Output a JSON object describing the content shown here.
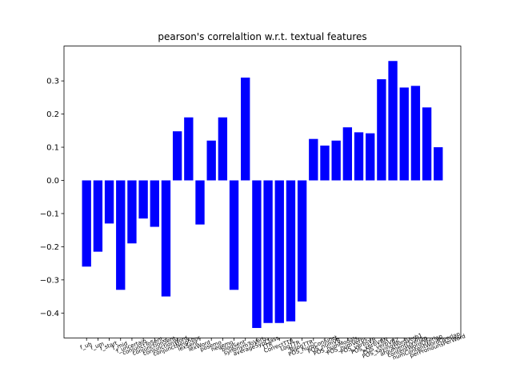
{
  "chart_data": {
    "type": "bar",
    "title": "pearson's correlaltion w.r.t. textual features",
    "categories": [
      "f_uh",
      "f_um",
      "f_start",
      "f_mid",
      "f_uncertain",
      "conjunctToSent",
      "conjunctionSent",
      "conjunctionWord",
      "conjunctNeighbor",
      "lexSent",
      "lexWord",
      "posemo",
      "negemo",
      "blogSent",
      "synonymToVerb",
      "averageSynClass",
      "TTR",
      "CorrectTTR",
      "LogTTR",
      "BilogTTR",
      "POS_numConjunct",
      "POS_numVB",
      "POS_numModals",
      "POS_numVerbs",
      "POS_verbsVB",
      "POS_verbVBN",
      "POS_verbVBZ",
      "POS_sayingWordVerb1",
      "argumentOverlap",
      "contentWordOverlap",
      "numContentWordOverlap",
      "perPronounsPerWord"
    ],
    "values": [
      -0.26,
      -0.215,
      -0.13,
      -0.33,
      -0.19,
      -0.115,
      -0.14,
      -0.35,
      0.148,
      0.19,
      -0.133,
      0.12,
      0.19,
      -0.33,
      0.31,
      -0.445,
      -0.43,
      -0.43,
      -0.425,
      -0.365,
      0.125,
      0.105,
      0.12,
      0.16,
      0.145,
      0.142,
      0.305,
      0.36,
      0.28,
      0.285,
      0.22,
      0.1
    ],
    "color": "#0000ff",
    "ylim": [
      -0.475,
      0.405
    ],
    "yticks": [
      {
        "value": -0.4,
        "label": "−0.4"
      },
      {
        "value": -0.3,
        "label": "−0.3"
      },
      {
        "value": -0.2,
        "label": "−0.2"
      },
      {
        "value": -0.1,
        "label": "−0.1"
      },
      {
        "value": 0,
        "label": "0.0"
      },
      0.1,
      0.2,
      0.3
    ]
  }
}
